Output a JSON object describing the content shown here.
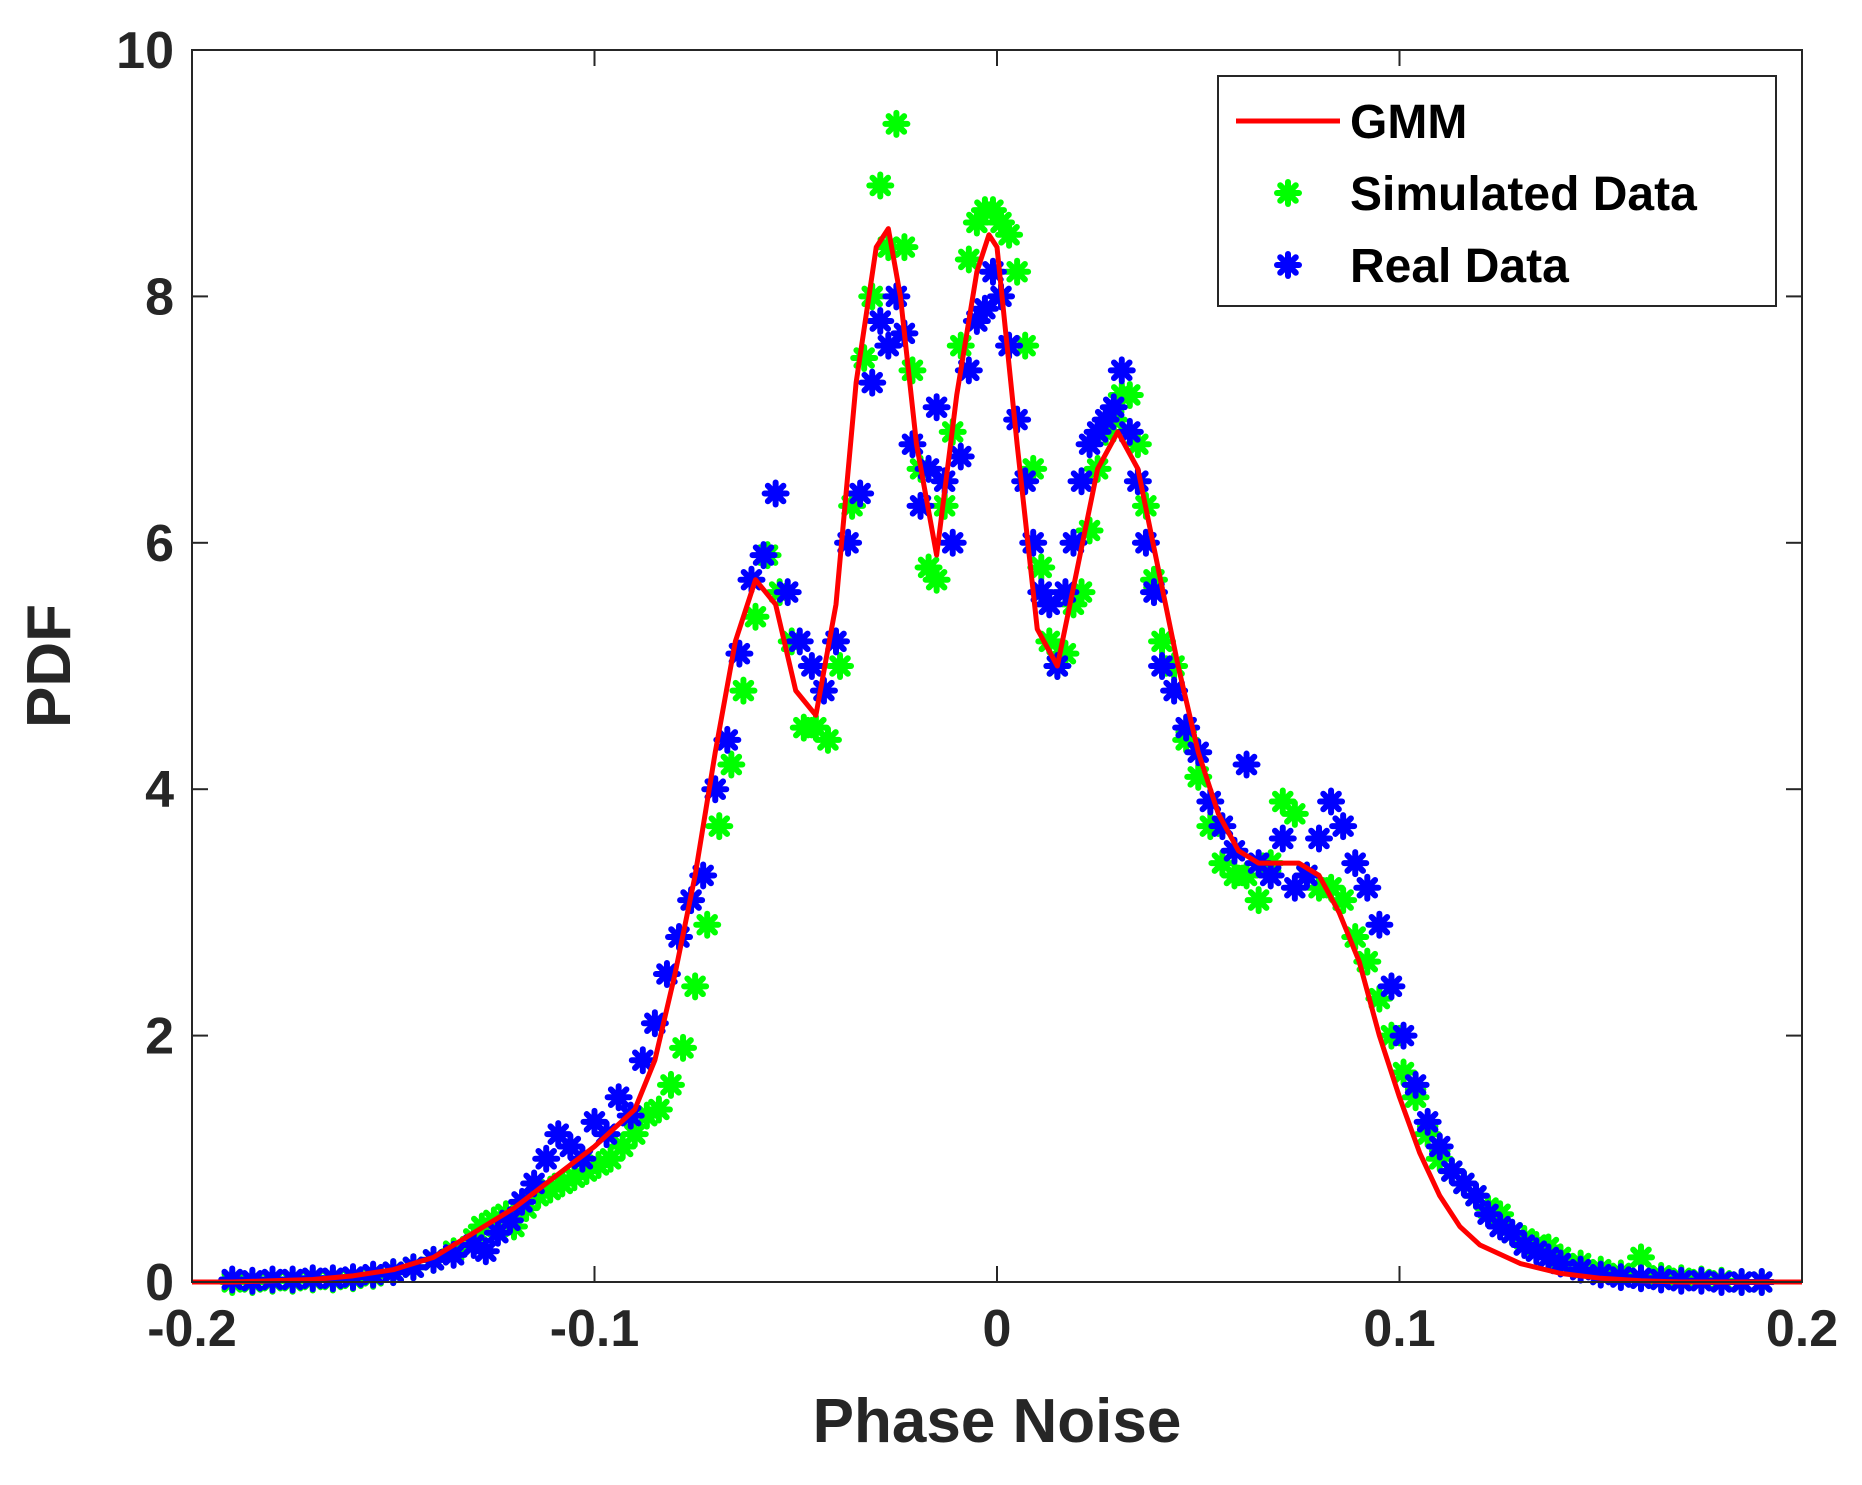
{
  "chart_data": {
    "type": "scatter",
    "xlabel": "Phase Noise",
    "ylabel": "PDF",
    "xlim": [
      -0.2,
      0.2
    ],
    "ylim": [
      0,
      10
    ],
    "grid": false,
    "legend_position": "top-right",
    "xticks": [
      {
        "value": -0.2,
        "label": "-0.2"
      },
      {
        "value": -0.1,
        "label": "-0.1"
      },
      {
        "value": 0,
        "label": "0"
      },
      {
        "value": 0.1,
        "label": "0.1"
      },
      {
        "value": 0.2,
        "label": "0.2"
      }
    ],
    "yticks": [
      {
        "value": 0,
        "label": "0"
      },
      {
        "value": 2,
        "label": "2"
      },
      {
        "value": 4,
        "label": "4"
      },
      {
        "value": 6,
        "label": "6"
      },
      {
        "value": 8,
        "label": "8"
      },
      {
        "value": 10,
        "label": "10"
      }
    ],
    "series": [
      {
        "name": "GMM",
        "kind": "line",
        "color": "#ff0000",
        "x": [
          -0.2,
          -0.19,
          -0.18,
          -0.17,
          -0.16,
          -0.15,
          -0.14,
          -0.13,
          -0.12,
          -0.11,
          -0.1,
          -0.09,
          -0.085,
          -0.08,
          -0.075,
          -0.07,
          -0.065,
          -0.06,
          -0.055,
          -0.05,
          -0.045,
          -0.04,
          -0.035,
          -0.03,
          -0.027,
          -0.024,
          -0.02,
          -0.015,
          -0.01,
          -0.005,
          -0.002,
          0.0,
          0.005,
          0.01,
          0.015,
          0.02,
          0.025,
          0.03,
          0.035,
          0.04,
          0.045,
          0.05,
          0.055,
          0.06,
          0.065,
          0.07,
          0.075,
          0.08,
          0.085,
          0.09,
          0.095,
          0.1,
          0.105,
          0.11,
          0.115,
          0.12,
          0.13,
          0.14,
          0.15,
          0.16,
          0.17,
          0.18,
          0.19,
          0.2
        ],
        "y": [
          0.0,
          0.0,
          0.01,
          0.02,
          0.05,
          0.1,
          0.2,
          0.4,
          0.6,
          0.85,
          1.1,
          1.4,
          1.8,
          2.5,
          3.3,
          4.3,
          5.2,
          5.7,
          5.5,
          4.8,
          4.6,
          5.5,
          7.3,
          8.4,
          8.55,
          8.0,
          6.8,
          5.9,
          7.2,
          8.2,
          8.5,
          8.4,
          6.8,
          5.3,
          5.0,
          5.8,
          6.6,
          6.9,
          6.6,
          5.8,
          5.0,
          4.3,
          3.8,
          3.5,
          3.4,
          3.4,
          3.4,
          3.3,
          3.0,
          2.6,
          2.0,
          1.5,
          1.05,
          0.7,
          0.45,
          0.3,
          0.15,
          0.07,
          0.03,
          0.01,
          0.0,
          0.0,
          0.0,
          0.0
        ]
      },
      {
        "name": "Simulated Data",
        "kind": "scatter",
        "color": "#00ff00",
        "x": [
          -0.19,
          -0.185,
          -0.18,
          -0.175,
          -0.17,
          -0.165,
          -0.16,
          -0.155,
          -0.15,
          -0.145,
          -0.14,
          -0.135,
          -0.13,
          -0.128,
          -0.125,
          -0.122,
          -0.12,
          -0.117,
          -0.114,
          -0.111,
          -0.108,
          -0.105,
          -0.102,
          -0.099,
          -0.096,
          -0.093,
          -0.09,
          -0.087,
          -0.084,
          -0.081,
          -0.078,
          -0.075,
          -0.072,
          -0.069,
          -0.066,
          -0.063,
          -0.06,
          -0.057,
          -0.054,
          -0.051,
          -0.048,
          -0.045,
          -0.042,
          -0.039,
          -0.036,
          -0.033,
          -0.031,
          -0.029,
          -0.027,
          -0.025,
          -0.023,
          -0.021,
          -0.019,
          -0.017,
          -0.015,
          -0.013,
          -0.011,
          -0.009,
          -0.007,
          -0.005,
          -0.003,
          -0.001,
          0.001,
          0.003,
          0.005,
          0.007,
          0.009,
          0.011,
          0.013,
          0.015,
          0.017,
          0.019,
          0.021,
          0.023,
          0.025,
          0.027,
          0.029,
          0.031,
          0.033,
          0.035,
          0.037,
          0.039,
          0.041,
          0.044,
          0.047,
          0.05,
          0.053,
          0.056,
          0.059,
          0.062,
          0.065,
          0.068,
          0.071,
          0.074,
          0.077,
          0.08,
          0.083,
          0.086,
          0.089,
          0.092,
          0.095,
          0.098,
          0.101,
          0.104,
          0.107,
          0.11,
          0.113,
          0.116,
          0.119,
          0.122,
          0.125,
          0.128,
          0.131,
          0.134,
          0.137,
          0.14,
          0.145,
          0.15,
          0.155,
          0.16,
          0.165,
          0.17,
          0.175,
          0.18,
          0.185,
          0.19
        ],
        "y": [
          0.0,
          0.0,
          0.01,
          0.01,
          0.02,
          0.02,
          0.03,
          0.05,
          0.08,
          0.12,
          0.18,
          0.25,
          0.35,
          0.45,
          0.5,
          0.55,
          0.45,
          0.6,
          0.7,
          0.75,
          0.8,
          0.85,
          0.9,
          0.95,
          1.0,
          1.1,
          1.2,
          1.35,
          1.4,
          1.6,
          1.9,
          2.4,
          2.9,
          3.7,
          4.2,
          4.8,
          5.4,
          5.9,
          5.6,
          5.2,
          4.5,
          4.5,
          4.4,
          5.0,
          6.3,
          7.5,
          8.0,
          8.9,
          8.4,
          9.4,
          8.4,
          7.4,
          6.6,
          5.8,
          5.7,
          6.3,
          6.9,
          7.6,
          8.3,
          8.6,
          8.7,
          8.7,
          8.6,
          8.5,
          8.2,
          7.6,
          6.6,
          5.8,
          5.2,
          5.0,
          5.1,
          5.5,
          5.6,
          6.1,
          6.6,
          6.9,
          7.0,
          7.2,
          7.2,
          6.8,
          6.3,
          5.7,
          5.2,
          5.0,
          4.4,
          4.1,
          3.7,
          3.4,
          3.3,
          3.3,
          3.1,
          3.4,
          3.9,
          3.8,
          3.3,
          3.2,
          3.2,
          3.1,
          2.8,
          2.6,
          2.3,
          2.0,
          1.7,
          1.5,
          1.2,
          1.0,
          0.9,
          0.8,
          0.7,
          0.6,
          0.55,
          0.4,
          0.35,
          0.3,
          0.28,
          0.2,
          0.15,
          0.1,
          0.07,
          0.2,
          0.05,
          0.03,
          0.02,
          0.01,
          0.0,
          0.0
        ]
      },
      {
        "name": "Real Data",
        "kind": "scatter",
        "color": "#0000ff",
        "x": [
          -0.19,
          -0.185,
          -0.18,
          -0.175,
          -0.17,
          -0.165,
          -0.16,
          -0.155,
          -0.15,
          -0.145,
          -0.14,
          -0.135,
          -0.13,
          -0.127,
          -0.124,
          -0.121,
          -0.118,
          -0.115,
          -0.112,
          -0.109,
          -0.106,
          -0.103,
          -0.1,
          -0.097,
          -0.094,
          -0.091,
          -0.088,
          -0.085,
          -0.082,
          -0.079,
          -0.076,
          -0.073,
          -0.07,
          -0.067,
          -0.064,
          -0.061,
          -0.058,
          -0.055,
          -0.052,
          -0.049,
          -0.046,
          -0.043,
          -0.04,
          -0.037,
          -0.034,
          -0.031,
          -0.029,
          -0.027,
          -0.025,
          -0.023,
          -0.021,
          -0.019,
          -0.017,
          -0.015,
          -0.013,
          -0.011,
          -0.009,
          -0.007,
          -0.005,
          -0.003,
          -0.001,
          0.001,
          0.003,
          0.005,
          0.007,
          0.009,
          0.011,
          0.013,
          0.015,
          0.017,
          0.019,
          0.021,
          0.023,
          0.025,
          0.027,
          0.029,
          0.031,
          0.033,
          0.035,
          0.037,
          0.039,
          0.041,
          0.044,
          0.047,
          0.05,
          0.053,
          0.056,
          0.059,
          0.062,
          0.065,
          0.068,
          0.071,
          0.074,
          0.077,
          0.08,
          0.083,
          0.086,
          0.089,
          0.092,
          0.095,
          0.098,
          0.101,
          0.104,
          0.107,
          0.11,
          0.113,
          0.116,
          0.119,
          0.122,
          0.125,
          0.128,
          0.131,
          0.134,
          0.137,
          0.14,
          0.145,
          0.15,
          0.155,
          0.16,
          0.165,
          0.17,
          0.175,
          0.18,
          0.185,
          0.19
        ],
        "y": [
          0.02,
          0.01,
          0.02,
          0.02,
          0.03,
          0.03,
          0.04,
          0.06,
          0.08,
          0.12,
          0.18,
          0.22,
          0.3,
          0.25,
          0.4,
          0.5,
          0.65,
          0.8,
          1.0,
          1.2,
          1.1,
          1.0,
          1.3,
          1.2,
          1.5,
          1.35,
          1.8,
          2.1,
          2.5,
          2.8,
          3.1,
          3.3,
          4.0,
          4.4,
          5.1,
          5.7,
          5.9,
          6.4,
          5.6,
          5.2,
          5.0,
          4.8,
          5.2,
          6.0,
          6.4,
          7.3,
          7.8,
          7.6,
          8.0,
          7.7,
          6.8,
          6.3,
          6.6,
          7.1,
          6.5,
          6.0,
          6.7,
          7.4,
          7.8,
          7.9,
          8.2,
          8.0,
          7.6,
          7.0,
          6.5,
          6.0,
          5.6,
          5.5,
          5.0,
          5.6,
          6.0,
          6.5,
          6.8,
          6.9,
          7.0,
          7.1,
          7.4,
          6.9,
          6.5,
          6.0,
          5.6,
          5.0,
          4.8,
          4.5,
          4.3,
          3.9,
          3.7,
          3.5,
          4.2,
          3.4,
          3.3,
          3.6,
          3.2,
          3.3,
          3.6,
          3.9,
          3.7,
          3.4,
          3.2,
          2.9,
          2.4,
          2.0,
          1.6,
          1.3,
          1.1,
          0.9,
          0.8,
          0.7,
          0.55,
          0.45,
          0.4,
          0.3,
          0.25,
          0.2,
          0.15,
          0.1,
          0.06,
          0.04,
          0.03,
          0.02,
          0.01,
          0.01,
          0.0,
          0.0,
          0.0
        ]
      }
    ]
  }
}
